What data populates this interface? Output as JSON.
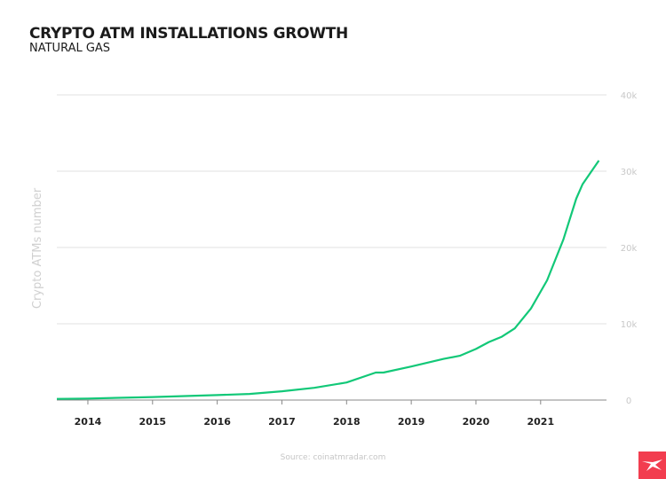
{
  "header": {
    "title": "CRYPTO ATM INSTALLATIONS GROWTH",
    "subtitle": "NATURAL GAS"
  },
  "footer": {
    "source": "Source: coinatmradar.com"
  },
  "logo": {
    "name": "xtb-logo",
    "color": "#f23d4f"
  },
  "chart_data": {
    "type": "line",
    "title": "CRYPTO ATM INSTALLATIONS GROWTH",
    "subtitle": "NATURAL GAS",
    "ylabel": "Crypto ATMs number",
    "xlabel": "",
    "xlim": [
      2013.52,
      2021.95
    ],
    "ylim": [
      0,
      40000
    ],
    "x_ticks": [
      "2014",
      "2015",
      "2016",
      "2017",
      "2018",
      "2019",
      "2020",
      "2021"
    ],
    "y_ticks": [
      {
        "value": 0,
        "label": "0"
      },
      {
        "value": 10000,
        "label": "10k"
      },
      {
        "value": 20000,
        "label": "20k"
      },
      {
        "value": 30000,
        "label": "30k"
      },
      {
        "value": 40000,
        "label": "40k"
      }
    ],
    "y_axis_side": "right",
    "grid": true,
    "line_color": "#12c878",
    "series": [
      {
        "x": [
          2013.52,
          2014,
          2015,
          2016,
          2016.5,
          2017,
          2017.5,
          2018,
          2018.45,
          2018.57,
          2019,
          2019.5,
          2019.75,
          2020,
          2020.2,
          2020.4,
          2020.6,
          2020.85,
          2021.1,
          2021.35,
          2021.55,
          2021.65,
          2021.9
        ],
        "y": [
          150,
          200,
          400,
          650,
          800,
          1150,
          1600,
          2300,
          3600,
          3600,
          4400,
          5400,
          5800,
          6700,
          7600,
          8300,
          9400,
          12000,
          15700,
          21000,
          26400,
          28300,
          31400
        ]
      }
    ]
  }
}
